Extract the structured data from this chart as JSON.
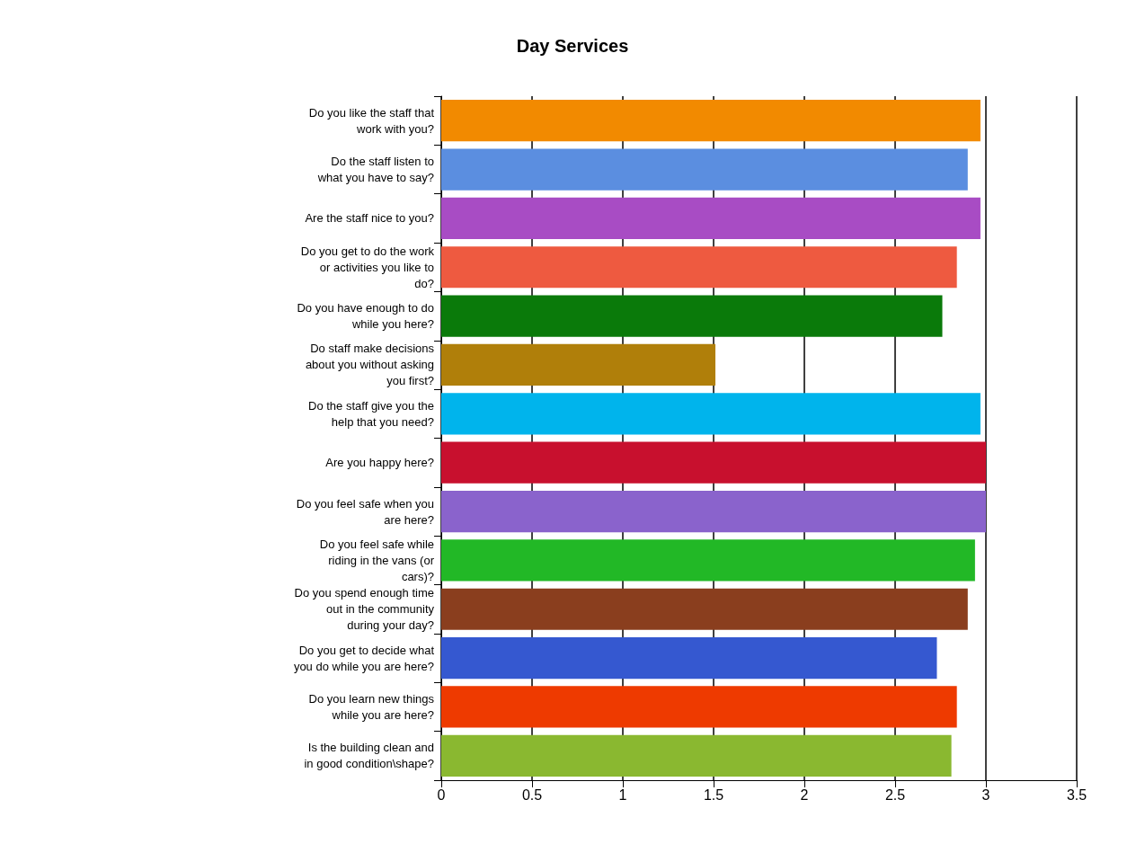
{
  "chart_data": {
    "type": "bar",
    "orientation": "horizontal",
    "title": "Day Services",
    "categories": [
      "Do you like the staff that work with you?",
      "Do the staff listen to what you have to say?",
      "Are the staff nice to you?",
      "Do you get to do the work or activities you like to do?",
      "Do you have enough to do while you here?",
      "Do staff make decisions about you without asking you first?",
      "Do the staff give you the help that you need?",
      "Are you happy here?",
      "Do you feel safe when you are here?",
      "Do you feel safe while riding in the vans (or cars)?",
      "Do you spend enough time out in the community during your day?",
      "Do you get to decide what you do while you are here?",
      "Do you learn new things while you are here?",
      "Is the building clean and in good condition\\shape?"
    ],
    "values": [
      2.97,
      2.9,
      2.97,
      2.84,
      2.76,
      1.51,
      2.97,
      3.0,
      3.0,
      2.94,
      2.9,
      2.73,
      2.84,
      2.81
    ],
    "colors": [
      "#f28a00",
      "#5b8ee0",
      "#a84cc4",
      "#ee5a40",
      "#0a7a0a",
      "#b07f0a",
      "#00b4ec",
      "#c8102e",
      "#8a63cc",
      "#22b826",
      "#8a3e1e",
      "#3558d0",
      "#ee3a00",
      "#8ab830"
    ],
    "xlim": [
      0,
      3.5
    ],
    "xticks": [
      0,
      0.5,
      1,
      1.5,
      2,
      2.5,
      3,
      3.5
    ],
    "grid": "x"
  }
}
